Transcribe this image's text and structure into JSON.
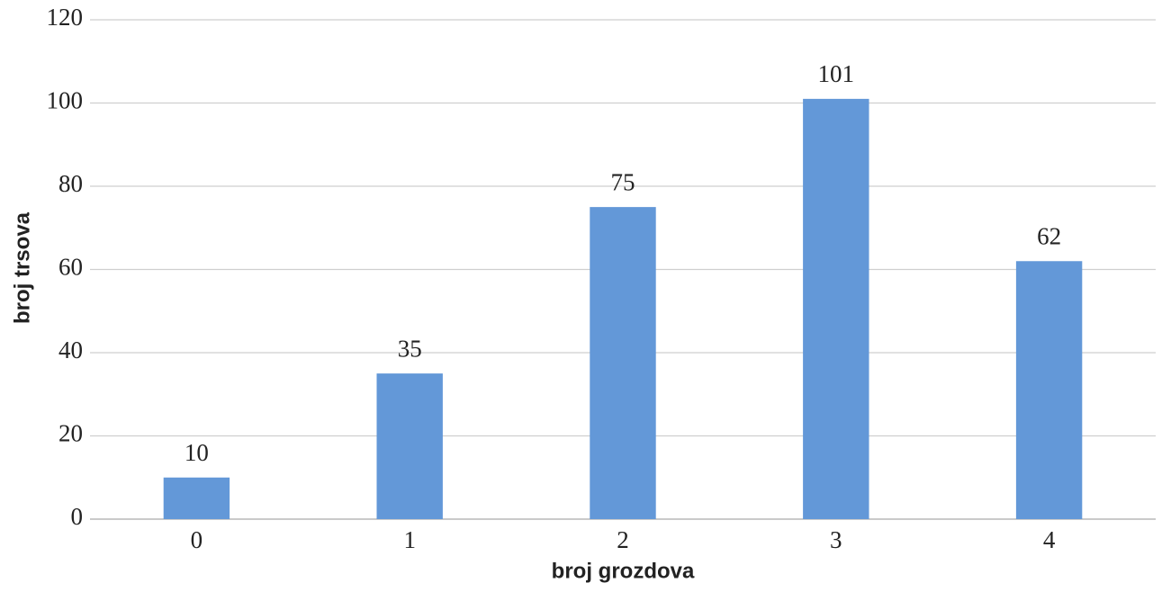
{
  "chart_data": {
    "type": "bar",
    "x_label": "broj grozdova",
    "y_label": "broj trsova",
    "categories": [
      "0",
      "1",
      "2",
      "3",
      "4"
    ],
    "values": [
      10,
      35,
      75,
      101,
      62
    ],
    "color": "#6398d8",
    "ylim": [
      0,
      120
    ],
    "yticks": [
      0,
      20,
      40,
      60,
      80,
      100,
      120
    ],
    "grid": true,
    "data_labels": true
  }
}
